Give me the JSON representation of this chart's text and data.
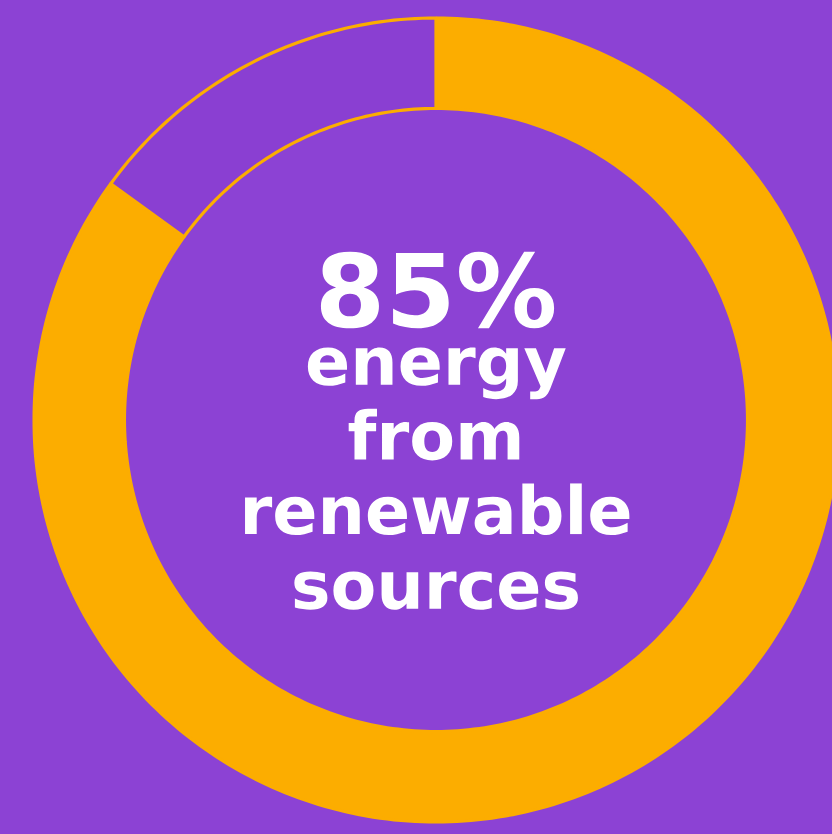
{
  "chart_data": {
    "type": "donut",
    "categories": [
      null,
      null
    ],
    "values": [
      85,
      15
    ],
    "colors": [
      "#fcad00",
      "#8a3fd2"
    ],
    "annotations": [
      "85%",
      "energy from renewable sources"
    ]
  }
}
